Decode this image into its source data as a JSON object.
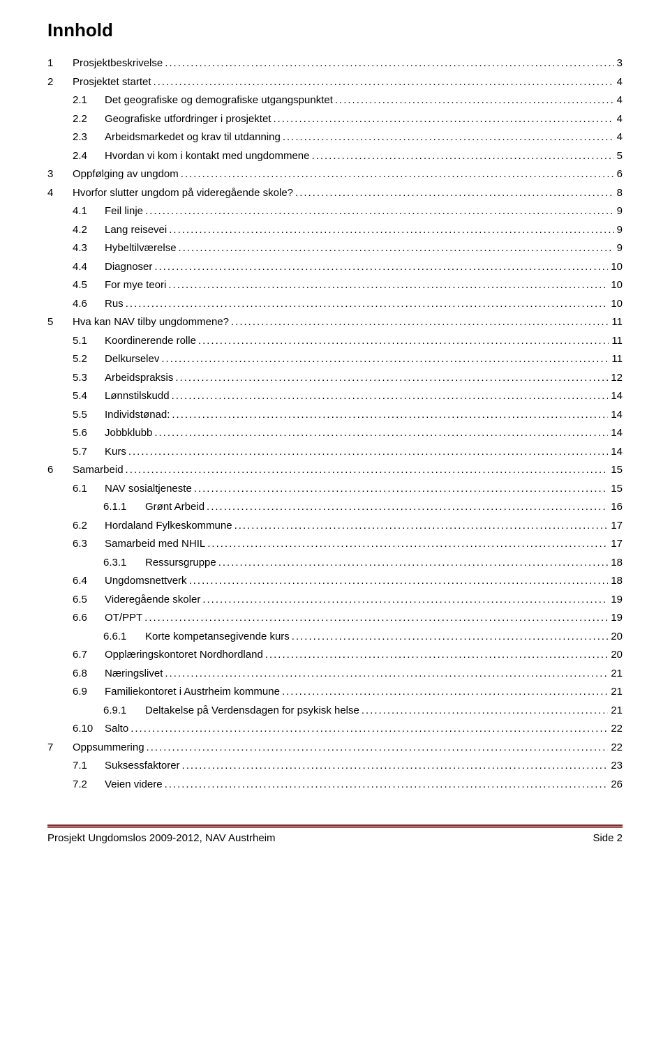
{
  "title": "Innhold",
  "leader_char": ".",
  "colors": {
    "rule": "#92212b",
    "text": "#000000",
    "background": "#ffffff"
  },
  "typography": {
    "title_fontsize": 26,
    "entry_fontsize": 15,
    "font_family": "Verdana"
  },
  "toc": [
    {
      "level": 1,
      "num": "1",
      "text": "Prosjektbeskrivelse",
      "page": "3"
    },
    {
      "level": 1,
      "num": "2",
      "text": "Prosjektet startet",
      "page": "4"
    },
    {
      "level": 2,
      "num": "2.1",
      "text": "Det geografiske og demografiske utgangspunktet",
      "page": "4"
    },
    {
      "level": 2,
      "num": "2.2",
      "text": "Geografiske utfordringer i prosjektet",
      "page": "4"
    },
    {
      "level": 2,
      "num": "2.3",
      "text": "Arbeidsmarkedet og krav til utdanning",
      "page": "4"
    },
    {
      "level": 2,
      "num": "2.4",
      "text": "Hvordan vi kom i kontakt med ungdommene",
      "page": "5"
    },
    {
      "level": 1,
      "num": "3",
      "text": "Oppfølging av ungdom",
      "page": "6"
    },
    {
      "level": 1,
      "num": "4",
      "text": "Hvorfor slutter ungdom på videregående skole?",
      "page": "8"
    },
    {
      "level": 2,
      "num": "4.1",
      "text": "Feil linje",
      "page": "9"
    },
    {
      "level": 2,
      "num": "4.2",
      "text": "Lang reisevei",
      "page": "9"
    },
    {
      "level": 2,
      "num": "4.3",
      "text": "Hybeltilværelse",
      "page": "9"
    },
    {
      "level": 2,
      "num": "4.4",
      "text": "Diagnoser",
      "page": "10"
    },
    {
      "level": 2,
      "num": "4.5",
      "text": "For mye teori",
      "page": "10"
    },
    {
      "level": 2,
      "num": "4.6",
      "text": "Rus",
      "page": "10"
    },
    {
      "level": 1,
      "num": "5",
      "text": "Hva kan NAV tilby ungdommene?",
      "page": "11"
    },
    {
      "level": 2,
      "num": "5.1",
      "text": "Koordinerende rolle",
      "page": "11"
    },
    {
      "level": 2,
      "num": "5.2",
      "text": "Delkurselev",
      "page": "11"
    },
    {
      "level": 2,
      "num": "5.3",
      "text": "Arbeidspraksis",
      "page": "12"
    },
    {
      "level": 2,
      "num": "5.4",
      "text": "Lønnstilskudd",
      "page": "14"
    },
    {
      "level": 2,
      "num": "5.5",
      "text": "Individstønad:",
      "page": "14"
    },
    {
      "level": 2,
      "num": "5.6",
      "text": "Jobbklubb",
      "page": "14"
    },
    {
      "level": 2,
      "num": "5.7",
      "text": "Kurs",
      "page": "14"
    },
    {
      "level": 1,
      "num": "6",
      "text": "Samarbeid",
      "page": "15"
    },
    {
      "level": 2,
      "num": "6.1",
      "text": "NAV sosialtjeneste",
      "page": "15"
    },
    {
      "level": 3,
      "num": "6.1.1",
      "text": "Grønt Arbeid",
      "page": "16"
    },
    {
      "level": 2,
      "num": "6.2",
      "text": "Hordaland Fylkeskommune",
      "page": "17"
    },
    {
      "level": 2,
      "num": "6.3",
      "text": "Samarbeid med NHIL",
      "page": "17"
    },
    {
      "level": 3,
      "num": "6.3.1",
      "text": "Ressursgruppe",
      "page": "18"
    },
    {
      "level": 2,
      "num": "6.4",
      "text": "Ungdomsnettverk",
      "page": "18"
    },
    {
      "level": 2,
      "num": "6.5",
      "text": "Videregående skoler",
      "page": "19"
    },
    {
      "level": 2,
      "num": "6.6",
      "text": "OT/PPT",
      "page": "19"
    },
    {
      "level": 3,
      "num": "6.6.1",
      "text": "Korte kompetansegivende kurs",
      "page": "20"
    },
    {
      "level": 2,
      "num": "6.7",
      "text": "Opplæringskontoret Nordhordland",
      "page": "20"
    },
    {
      "level": 2,
      "num": "6.8",
      "text": "Næringslivet",
      "page": "21"
    },
    {
      "level": 2,
      "num": "6.9",
      "text": "Familiekontoret i Austrheim kommune",
      "page": "21"
    },
    {
      "level": 3,
      "num": "6.9.1",
      "text": "Deltakelse på Verdensdagen for psykisk helse",
      "page": "21"
    },
    {
      "level": 2,
      "num": "6.10",
      "text": "Salto",
      "page": "22"
    },
    {
      "level": 1,
      "num": "7",
      "text": "Oppsummering",
      "page": "22"
    },
    {
      "level": 2,
      "num": "7.1",
      "text": "Suksessfaktorer",
      "page": "23"
    },
    {
      "level": 2,
      "num": "7.2",
      "text": "Veien videre",
      "page": "26"
    }
  ],
  "footer": {
    "left": "Prosjekt Ungdomslos 2009-2012, NAV Austrheim",
    "right": "Side 2"
  }
}
